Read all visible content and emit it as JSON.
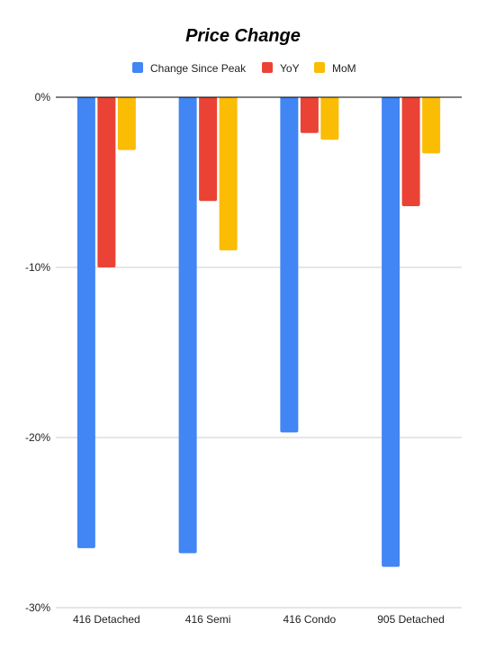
{
  "chart_data": {
    "type": "bar",
    "title": "Price Change",
    "xlabel": "",
    "ylabel": "",
    "categories": [
      "416 Detached",
      "416 Semi",
      "416 Condo",
      "905 Detached"
    ],
    "series": [
      {
        "name": "Change Since Peak",
        "color": "#4285f4",
        "values": [
          -26.5,
          -26.8,
          -19.7,
          -27.6
        ]
      },
      {
        "name": "YoY",
        "color": "#ea4335",
        "values": [
          -10.0,
          -6.1,
          -2.1,
          -6.4
        ]
      },
      {
        "name": "MoM",
        "color": "#fbbc04",
        "values": [
          -3.1,
          -9.0,
          -2.5,
          -3.3
        ]
      }
    ],
    "ylim": [
      -30,
      0
    ],
    "yticks": [
      0,
      -10,
      -20,
      -30
    ],
    "ytick_labels": [
      "0%",
      "-10%",
      "-20%",
      "-30%"
    ],
    "grid": true,
    "legend_position": "top"
  }
}
